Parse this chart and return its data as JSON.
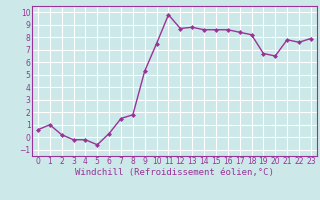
{
  "x": [
    0,
    1,
    2,
    3,
    4,
    5,
    6,
    7,
    8,
    9,
    10,
    11,
    12,
    13,
    14,
    15,
    16,
    17,
    18,
    19,
    20,
    21,
    22,
    23
  ],
  "y": [
    0.6,
    1.0,
    0.2,
    -0.2,
    -0.2,
    -0.6,
    0.3,
    1.5,
    1.8,
    5.3,
    7.5,
    9.8,
    8.7,
    8.8,
    8.6,
    8.6,
    8.6,
    8.4,
    8.2,
    6.7,
    6.5,
    7.8,
    7.6,
    7.9
  ],
  "line_color": "#993399",
  "marker": "D",
  "marker_size": 2.0,
  "bg_color": "#cce8e8",
  "grid_color": "#ffffff",
  "xlabel": "Windchill (Refroidissement éolien,°C)",
  "xlim": [
    -0.5,
    23.5
  ],
  "ylim": [
    -1.5,
    10.5
  ],
  "yticks": [
    -1,
    0,
    1,
    2,
    3,
    4,
    5,
    6,
    7,
    8,
    9,
    10
  ],
  "xticks": [
    0,
    1,
    2,
    3,
    4,
    5,
    6,
    7,
    8,
    9,
    10,
    11,
    12,
    13,
    14,
    15,
    16,
    17,
    18,
    19,
    20,
    21,
    22,
    23
  ],
  "tick_label_fontsize": 5.5,
  "xlabel_fontsize": 6.5,
  "axis_color": "#993399",
  "linewidth": 1.0
}
